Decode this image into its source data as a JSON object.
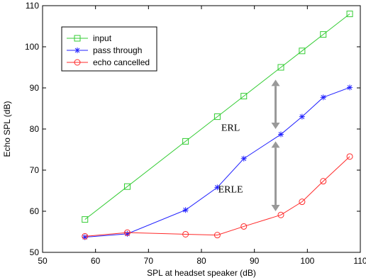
{
  "chart_data": {
    "type": "line",
    "xlabel": "SPL at headset speaker (dB)",
    "ylabel": "Echo SPL (dB)",
    "xlim": [
      50,
      110
    ],
    "ylim": [
      50,
      110
    ],
    "xticks": [
      50,
      60,
      70,
      80,
      90,
      100,
      110
    ],
    "yticks": [
      50,
      60,
      70,
      80,
      90,
      100,
      110
    ],
    "grid": false,
    "legend_position": "top-left",
    "series": [
      {
        "name": "input",
        "color": "#33cc33",
        "marker": "square",
        "x": [
          58,
          66,
          77,
          83,
          88,
          95,
          99,
          103,
          108
        ],
        "y": [
          58,
          66,
          77,
          83,
          88,
          95,
          99,
          103,
          108
        ]
      },
      {
        "name": "pass through",
        "color": "#2020ff",
        "marker": "star",
        "x": [
          58,
          66,
          77,
          83,
          88,
          95,
          99,
          103,
          108
        ],
        "y": [
          53.7,
          54.5,
          60.3,
          65.8,
          72.8,
          78.7,
          83,
          87.7,
          90.1
        ]
      },
      {
        "name": "echo cancelled",
        "color": "#ff2a2a",
        "marker": "circle",
        "x": [
          58,
          66,
          77,
          83,
          88,
          95,
          99,
          103,
          108
        ],
        "y": [
          53.9,
          54.8,
          54.4,
          54.2,
          56.3,
          59.1,
          62.3,
          67.3,
          73.3
        ]
      }
    ],
    "annotations": [
      {
        "text": "ERL",
        "arrow_x": 94,
        "arrow_from": 92,
        "arrow_to": 80,
        "text_x": 85.5,
        "text_y": 79.6
      },
      {
        "text": "ERLE",
        "arrow_x": 94,
        "arrow_from": 77,
        "arrow_to": 60,
        "text_x": 85.5,
        "text_y": 64.6
      }
    ],
    "arrow_color": "#999999"
  }
}
